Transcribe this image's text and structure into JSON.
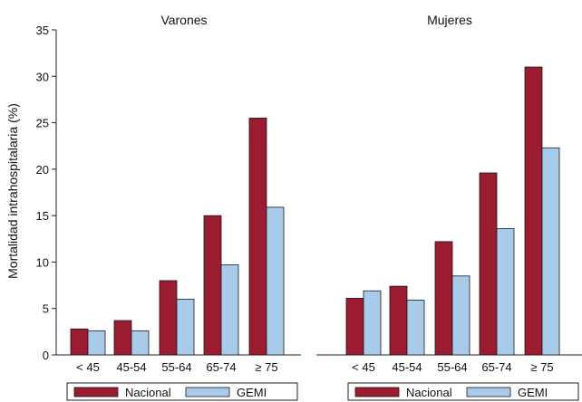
{
  "chart_data": {
    "type": "bar",
    "ylabel": "Mortalidad intrahospitalaria (%)",
    "ylim": [
      0,
      35
    ],
    "yticks": [
      0,
      5,
      10,
      15,
      20,
      25,
      30,
      35
    ],
    "grid": false,
    "categories": [
      "< 45",
      "45-54",
      "55-64",
      "65-74",
      "≥ 75"
    ],
    "legend": {
      "placement": "bottom",
      "entries": [
        {
          "name": "Nacional",
          "color": "#9b1b30"
        },
        {
          "name": "GEMI",
          "color": "#a8cbea"
        }
      ]
    },
    "panels": [
      {
        "title": "Varones",
        "series": [
          {
            "name": "Nacional",
            "values": [
              2.8,
              3.7,
              8.0,
              15.0,
              25.5
            ]
          },
          {
            "name": "GEMI",
            "values": [
              2.6,
              2.6,
              6.0,
              9.7,
              15.9
            ]
          }
        ]
      },
      {
        "title": "Mujeres",
        "series": [
          {
            "name": "Nacional",
            "values": [
              6.1,
              7.4,
              12.2,
              19.6,
              31.0
            ]
          },
          {
            "name": "GEMI",
            "values": [
              6.9,
              5.9,
              8.5,
              13.6,
              22.3
            ]
          }
        ]
      }
    ]
  }
}
